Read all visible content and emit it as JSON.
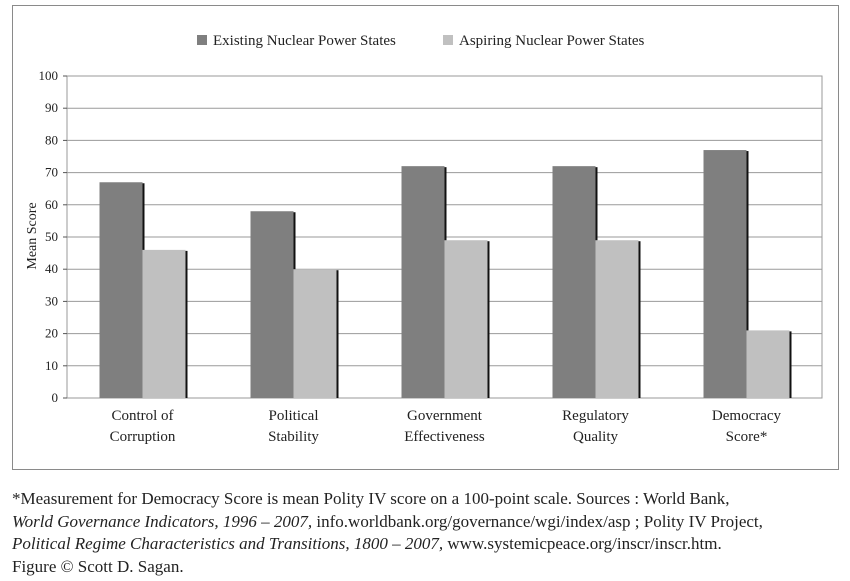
{
  "chart_data": {
    "type": "bar",
    "title": "",
    "xlabel": "",
    "ylabel": "Mean Score",
    "ylim": [
      0,
      100
    ],
    "yticks": [
      0,
      10,
      20,
      30,
      40,
      50,
      60,
      70,
      80,
      90,
      100
    ],
    "grid": true,
    "legend_position": "top-center",
    "categories": [
      [
        "Control of",
        "Corruption"
      ],
      [
        "Political",
        "Stability"
      ],
      [
        "Government",
        "Effectiveness"
      ],
      [
        "Regulatory",
        "Quality"
      ],
      [
        "Democracy",
        "Score*"
      ]
    ],
    "series": [
      {
        "name": "Existing Nuclear Power States",
        "color": "#7f7f7f",
        "values": [
          67,
          58,
          72,
          72,
          77
        ]
      },
      {
        "name": "Aspiring Nuclear Power States",
        "color": "#c0c0c0",
        "values": [
          46,
          40,
          49,
          49,
          21
        ]
      }
    ]
  },
  "caption": {
    "line1": "*Measurement for Democracy Score is mean Polity IV score on a 100-point scale. Sources : World Bank,",
    "line2_italic": "World Governance Indicators, 1996 – 2007,",
    "line2_rest": " info.worldbank.org/governance/wgi/index/asp ; Polity IV Project,",
    "line3_italic": "Political Regime Characteristics and Transitions, 1800 – 2007,",
    "line3_rest": " www.systemicpeace.org/inscr/inscr.htm.",
    "line4": "Figure © Scott D. Sagan."
  }
}
